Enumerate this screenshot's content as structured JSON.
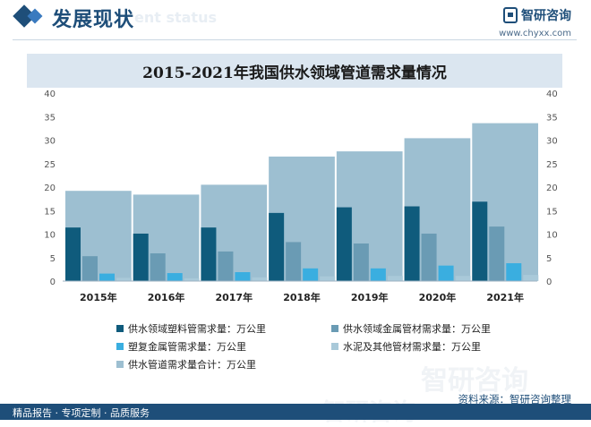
{
  "header": {
    "title": "发展现状",
    "watermark_en": "ent status",
    "brand_name": "智研咨询",
    "brand_url": "www.chyxx.com"
  },
  "colors": {
    "plastic": "#0f5b7c",
    "metal": "#6a9bb4",
    "coated": "#3aaee0",
    "cement": "#a9c9d9",
    "total": "#9dbfd1",
    "brand": "#1e4e79"
  },
  "watermarks": [
    "智研咨询",
    "智研咨询"
  ],
  "source": "资料来源：智研咨询整理",
  "footer": "精品报告 · 专项定制 · 品质服务",
  "chart_data": {
    "type": "bar",
    "title": "2015-2021年我国供水领域管道需求量情况",
    "categories": [
      "2015年",
      "2016年",
      "2017年",
      "2018年",
      "2019年",
      "2020年",
      "2021年"
    ],
    "ylim": [
      0,
      40
    ],
    "yticks": [
      0,
      5,
      10,
      15,
      20,
      25,
      30,
      35,
      40
    ],
    "legend_position": "bottom",
    "grid": false,
    "series": [
      {
        "name": "供水管道需求量合计：万公里",
        "color_key": "total",
        "values": [
          19.2,
          18.4,
          20.5,
          26.5,
          27.6,
          30.4,
          33.6
        ]
      },
      {
        "name": "供水领域塑料管需求量：万公里",
        "color_key": "plastic",
        "values": [
          11.4,
          10.1,
          11.4,
          14.5,
          15.7,
          15.9,
          16.9
        ]
      },
      {
        "name": "供水领域金属管材需求量：万公里",
        "color_key": "metal",
        "values": [
          5.3,
          5.9,
          6.3,
          8.3,
          8.0,
          10.1,
          11.6
        ]
      },
      {
        "name": "塑复金属管需求量：万公里",
        "color_key": "coated",
        "values": [
          1.6,
          1.7,
          1.9,
          2.7,
          2.7,
          3.3,
          3.8
        ]
      },
      {
        "name": "水泥及其他管材需求量：万公里",
        "color_key": "cement",
        "values": [
          0.7,
          0.6,
          0.8,
          1.0,
          1.1,
          1.1,
          1.3
        ]
      }
    ],
    "legend_order": [
      1,
      2,
      3,
      4,
      0
    ]
  }
}
